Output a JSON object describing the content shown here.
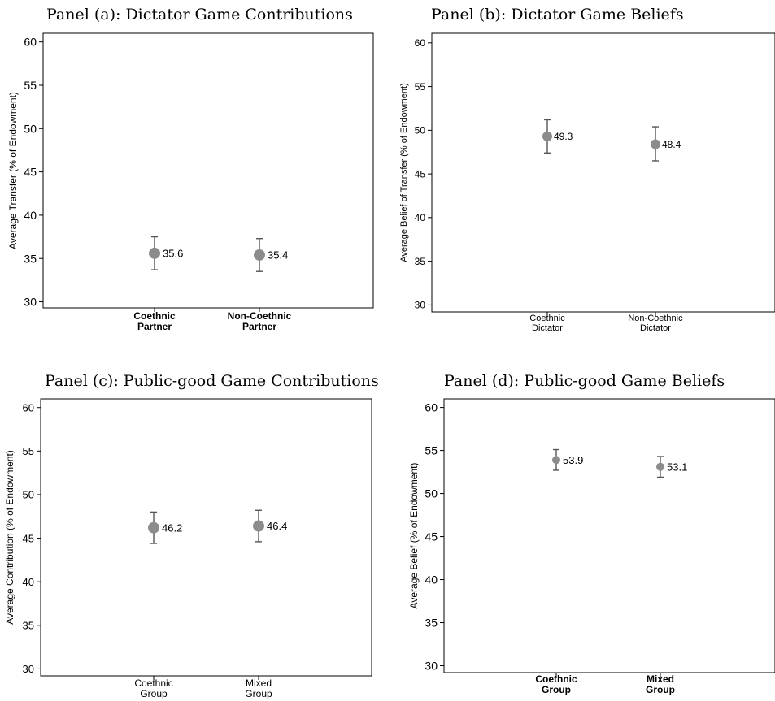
{
  "chart_data": [
    {
      "type": "scatter",
      "title": "Panel (a): Dictator Game Contributions",
      "ylabel": "Average Transfer (% of Endowment)",
      "categories": [
        [
          "Coethnic",
          "Partner"
        ],
        [
          "Non-Coethnic",
          "Partner"
        ]
      ],
      "values": [
        35.6,
        35.4
      ],
      "value_labels": [
        "35.6",
        "35.4"
      ],
      "ci_low": [
        33.7,
        33.5
      ],
      "ci_high": [
        37.5,
        37.3
      ],
      "ylim": [
        29.3,
        61
      ],
      "yticks": [
        "30",
        "35",
        "40",
        "45",
        "50",
        "55",
        "60"
      ],
      "grid": false,
      "marker_color": "#8c8c8c"
    },
    {
      "type": "scatter",
      "title": "Panel (b): Dictator Game Beliefs",
      "ylabel": "Average Belief of Transfer (% of Endowment)",
      "categories": [
        [
          "Coethnic",
          "Dictator"
        ],
        [
          "Non-Coethnic",
          "Dictator"
        ]
      ],
      "values": [
        49.3,
        48.4
      ],
      "value_labels": [
        "49.3",
        "48.4"
      ],
      "ci_low": [
        47.4,
        46.5
      ],
      "ci_high": [
        51.2,
        50.4
      ],
      "ylim": [
        29.2,
        61.1
      ],
      "yticks": [
        "30",
        "35",
        "40",
        "45",
        "50",
        "55",
        "60"
      ],
      "grid": false,
      "marker_color": "#8c8c8c"
    },
    {
      "type": "scatter",
      "title": "Panel (c): Public-good Game Contributions",
      "ylabel": "Average Contribution (% of Endowment)",
      "categories": [
        [
          "Coethnic",
          "Group"
        ],
        [
          "Mixed",
          "Group"
        ]
      ],
      "values": [
        46.2,
        46.4
      ],
      "value_labels": [
        "46.2",
        "46.4"
      ],
      "ci_low": [
        44.4,
        44.6
      ],
      "ci_high": [
        48.0,
        48.2
      ],
      "ylim": [
        29.2,
        61.0
      ],
      "yticks": [
        "30",
        "35",
        "40",
        "45",
        "50",
        "55",
        "60"
      ],
      "grid": false,
      "marker_color": "#8c8c8c"
    },
    {
      "type": "scatter",
      "title": "Panel (d): Public-good Game Beliefs",
      "ylabel": "Average Belief (% of Endowment)",
      "categories": [
        [
          "Coethnic",
          "Group"
        ],
        [
          "Mixed",
          "Group"
        ]
      ],
      "values": [
        53.9,
        53.1
      ],
      "value_labels": [
        "53.9",
        "53.1"
      ],
      "ci_low": [
        52.7,
        51.9
      ],
      "ci_high": [
        55.1,
        54.3
      ],
      "ylim": [
        29.2,
        61.0
      ],
      "yticks": [
        "30",
        "35",
        "40",
        "45",
        "50",
        "55",
        "60"
      ],
      "grid": false,
      "marker_color": "#8c8c8c"
    }
  ]
}
